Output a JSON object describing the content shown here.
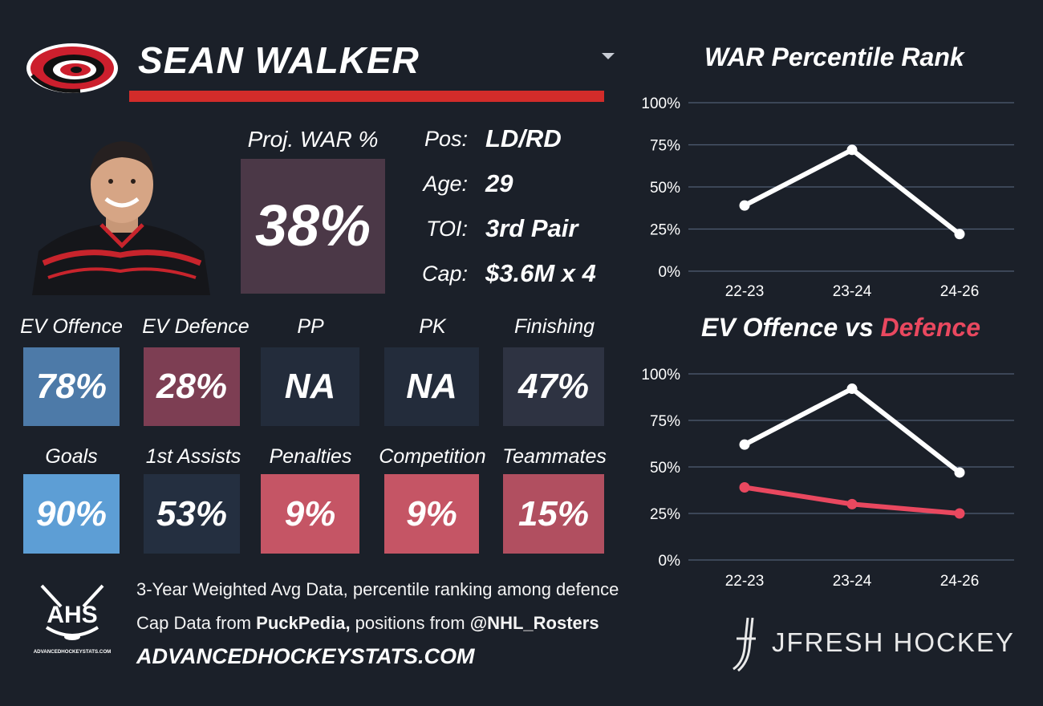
{
  "player": {
    "name": "SEAN WALKER"
  },
  "proj_war": {
    "label": "Proj. WAR %",
    "value": "38%"
  },
  "info": [
    {
      "label": "Pos:",
      "value": "LD/RD"
    },
    {
      "label": "Age:",
      "value": "29"
    },
    {
      "label": "TOI:",
      "value": "3rd Pair"
    },
    {
      "label": "Cap:",
      "value": "$3.6M x 4"
    }
  ],
  "tiles_row1": [
    {
      "label": "EV Offence",
      "value": "78%",
      "color": "#4d7aa8"
    },
    {
      "label": "EV Defence",
      "value": "28%",
      "color": "#7d3e53"
    },
    {
      "label": "PP",
      "value": "NA",
      "color": "#232c3b"
    },
    {
      "label": "PK",
      "value": "NA",
      "color": "#232c3b"
    },
    {
      "label": "Finishing",
      "value": "47%",
      "color": "#2e3342"
    }
  ],
  "tiles_row2": [
    {
      "label": "Goals",
      "value": "90%",
      "color": "#5d9ed5"
    },
    {
      "label": "1st Assists",
      "value": "53%",
      "color": "#242f40"
    },
    {
      "label": "Penalties",
      "value": "9%",
      "color": "#c55565"
    },
    {
      "label": "Competition",
      "value": "9%",
      "color": "#c55565"
    },
    {
      "label": "Teammates",
      "value": "15%",
      "color": "#b14f60"
    }
  ],
  "footer": {
    "line1": "3-Year Weighted Avg Data, percentile ranking among defence",
    "line2_prefix": "Cap Data from ",
    "line2_source": "PuckPedia,",
    "line2_mid": " positions from ",
    "line2_handle": "@NHL_Rosters",
    "site": "ADVANCEDHOCKEYSTATS.COM",
    "ahs_logo": "AHS",
    "ahs_sub": "ADVANCEDHOCKEYSTATS.COM",
    "brand": "JFRESH HOCKEY"
  },
  "colors": {
    "accent_red": "#d22c2a",
    "proj_box": "#4b3847",
    "offence_line": "#ffffff",
    "defence_line": "#e9485f"
  },
  "icons": {
    "team_logo": "hurricanes-logo-icon",
    "dropdown": "caret-down-icon",
    "player_photo": "player-headshot-icon",
    "brand_logo": "jfresh-stick-icon"
  },
  "chart_data": [
    {
      "type": "line",
      "title": "WAR Percentile Rank",
      "categories": [
        "22-23",
        "23-24",
        "24-26"
      ],
      "series": [
        {
          "values": [
            39,
            72,
            22
          ],
          "color": "#ffffff"
        }
      ],
      "yticks": [
        "100%",
        "75%",
        "50%",
        "25%",
        "0%"
      ],
      "ylim": [
        0,
        100
      ],
      "grid": true
    },
    {
      "type": "line",
      "title_part1": "EV Offence vs ",
      "title_part2": "Defence",
      "categories": [
        "22-23",
        "23-24",
        "24-26"
      ],
      "series": [
        {
          "values": [
            62,
            92,
            47
          ],
          "color": "#ffffff"
        },
        {
          "values": [
            39,
            30,
            25
          ],
          "color": "#e9485f"
        }
      ],
      "yticks": [
        "100%",
        "75%",
        "50%",
        "25%",
        "0%"
      ],
      "ylim": [
        0,
        100
      ],
      "grid": true
    }
  ]
}
